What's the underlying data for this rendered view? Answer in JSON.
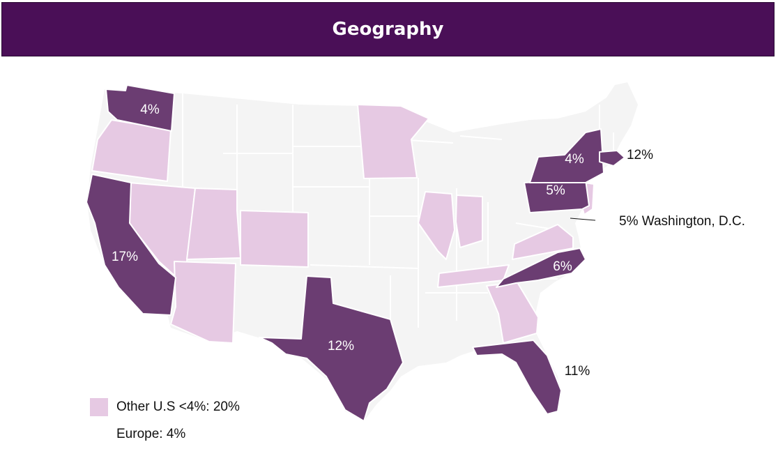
{
  "header": {
    "title": "Geography"
  },
  "colors": {
    "header_bg": "#4a0f57",
    "high_share": "#6b3d72",
    "other_share": "#e6c9e3",
    "no_data": "#f4f4f4",
    "border": "#ffffff"
  },
  "map": {
    "region": "United States",
    "highlighted_states": [
      {
        "state": "Washington",
        "label": "4%"
      },
      {
        "state": "California",
        "label": "17%"
      },
      {
        "state": "Texas",
        "label": "12%"
      },
      {
        "state": "Florida",
        "label": "11%"
      },
      {
        "state": "North Carolina",
        "label": "6%"
      },
      {
        "state": "Pennsylvania",
        "label": "5%"
      },
      {
        "state": "New York",
        "label": "4%"
      },
      {
        "state": "Massachusetts",
        "label": "12%"
      }
    ],
    "dc_label": "5% Washington, D.C.",
    "other_states": [
      "Oregon",
      "Nevada",
      "Utah",
      "Arizona",
      "Colorado",
      "Minnesota",
      "Illinois",
      "Indiana",
      "Tennessee",
      "Georgia",
      "Virginia",
      "New Jersey"
    ]
  },
  "legend": {
    "other_label": "Other U.S <4%: 20%",
    "europe_label": "Europe: 4%"
  }
}
